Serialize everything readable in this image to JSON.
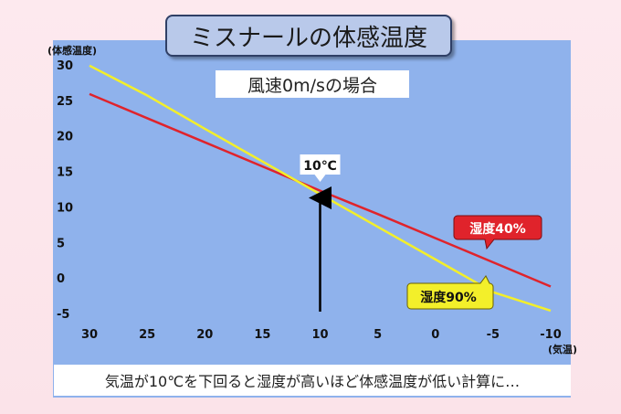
{
  "title": "ミスナールの体感温度",
  "subtitle": "風速0m/sの場合",
  "footer": "気温が10℃を下回ると湿度が高いほど体感温度が低い計算に…",
  "colors": {
    "plot_background": "#8fb2ec",
    "humidity_40": "#e0232b",
    "humidity_90": "#f3ef2a",
    "arrow": "#000000"
  },
  "chart_data": {
    "type": "line",
    "ylabel": "(体感温度)",
    "xlabel": "(気温)",
    "x_ticks": [
      30,
      25,
      20,
      15,
      10,
      5,
      0,
      -5,
      -10
    ],
    "y_ticks": [
      30,
      25,
      20,
      15,
      10,
      5,
      0,
      -5
    ],
    "xlim": [
      30,
      -10
    ],
    "ylim": [
      -5,
      30
    ],
    "x_direction": "reversed",
    "grid": false,
    "series": [
      {
        "name": "湿度40%",
        "color": "#e0232b",
        "x": [
          30,
          25,
          20,
          15,
          10,
          5,
          0,
          -5,
          -10
        ],
        "y": [
          25.9,
          22.5,
          19.1,
          15.7,
          12.3,
          9.0,
          5.6,
          2.2,
          -1.2
        ]
      },
      {
        "name": "湿度90%",
        "color": "#f3ef2a",
        "x": [
          30,
          25,
          20,
          15,
          10,
          5,
          0,
          -5,
          -10
        ],
        "y": [
          29.9,
          25.7,
          21.0,
          16.4,
          11.8,
          7.2,
          2.6,
          -2.0,
          -4.6
        ]
      }
    ],
    "annotations": [
      {
        "type": "arrow",
        "x": 10,
        "label": "10℃",
        "points_to_y": 12.3
      }
    ]
  }
}
